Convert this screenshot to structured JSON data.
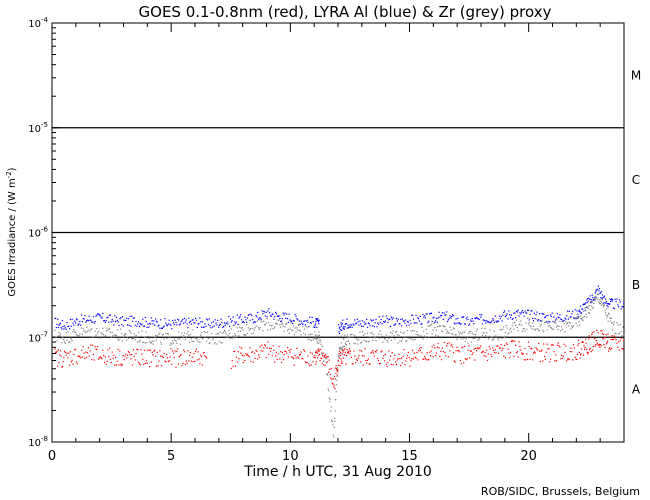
{
  "chart_data": {
    "type": "scatter",
    "title": "GOES 0.1-0.8nm (red), LYRA Al (blue) & Zr (grey) proxy",
    "xlabel": "Time / h UTC, 31 Aug 2010",
    "ylabel_main": "GOES Irradiance / (W m",
    "ylabel_exp": "-2",
    "ylabel_close": ")",
    "credit": "ROB/SIDC, Brussels, Belgium",
    "xlim": [
      0,
      24
    ],
    "ylim": [
      1e-08,
      0.0001
    ],
    "yscale": "log",
    "x_ticks": [
      0,
      5,
      10,
      15,
      20
    ],
    "y_ticks": [
      {
        "exp": -8,
        "label_base": "10",
        "label_exp": "-8"
      },
      {
        "exp": -7,
        "label_base": "10",
        "label_exp": "-7"
      },
      {
        "exp": -6,
        "label_base": "10",
        "label_exp": "-6"
      },
      {
        "exp": -5,
        "label_base": "10",
        "label_exp": "-5"
      },
      {
        "exp": -4,
        "label_base": "10",
        "label_exp": "-4"
      }
    ],
    "class_lines": [
      1e-07,
      1e-06,
      1e-05
    ],
    "class_labels": [
      {
        "label": "A",
        "value": 3.16e-08
      },
      {
        "label": "B",
        "value": 3.16e-07
      },
      {
        "label": "C",
        "value": 3.16e-06
      },
      {
        "label": "M",
        "value": 3.16e-05
      }
    ],
    "series": [
      {
        "color": "#0000ff",
        "x": [
          0.1,
          0.5,
          1,
          1.5,
          2,
          2.5,
          3,
          3.5,
          4,
          4.5,
          5,
          5.5,
          6,
          6.5,
          7,
          7.5,
          8,
          8.5,
          9,
          9.5,
          10,
          10.5,
          11,
          11.2,
          11.5,
          11.8,
          12,
          12.2,
          12.5,
          13,
          13.5,
          14,
          14.5,
          15,
          15.5,
          16,
          16.5,
          17,
          17.5,
          18,
          18.5,
          19,
          19.5,
          20,
          20.5,
          21,
          21.5,
          22,
          22.3,
          22.6,
          22.9,
          23.2,
          23.5,
          24
        ],
        "y": [
          1.4e-07,
          1.3e-07,
          1.45e-07,
          1.5e-07,
          1.55e-07,
          1.48e-07,
          1.42e-07,
          1.45e-07,
          1.4e-07,
          1.38e-07,
          1.35e-07,
          1.38e-07,
          1.42e-07,
          1.35e-07,
          1.38e-07,
          1.45e-07,
          1.5e-07,
          1.55e-07,
          1.75e-07,
          1.6e-07,
          1.55e-07,
          1.45e-07,
          1.4e-07,
          1.35e-07,
          null,
          null,
          1.2e-07,
          1.35e-07,
          1.4e-07,
          1.38e-07,
          1.42e-07,
          1.45e-07,
          1.4e-07,
          1.48e-07,
          1.5e-07,
          1.55e-07,
          1.6e-07,
          1.45e-07,
          1.42e-07,
          1.5e-07,
          1.55e-07,
          1.65e-07,
          1.7e-07,
          1.65e-07,
          1.6e-07,
          1.55e-07,
          1.6e-07,
          1.7e-07,
          2e-07,
          2.3e-07,
          2.9e-07,
          2.2e-07,
          2.1e-07,
          2.1e-07
        ]
      },
      {
        "color": "#808080",
        "x": [
          0.1,
          0.5,
          1,
          1.5,
          2,
          2.5,
          3,
          3.5,
          4,
          4.5,
          5,
          5.5,
          6,
          6.5,
          7,
          7.5,
          8,
          8.5,
          9,
          9.5,
          10,
          10.5,
          11,
          11.2,
          11.5,
          11.8,
          12,
          12.2,
          12.5,
          13,
          13.5,
          14,
          14.5,
          15,
          15.5,
          16,
          16.5,
          17,
          17.5,
          18,
          18.5,
          19,
          19.5,
          20,
          20.5,
          21,
          21.5,
          22,
          22.3,
          22.6,
          22.9,
          23.2,
          23.5,
          24
        ],
        "y": [
          1.05e-07,
          1e-07,
          1.1e-07,
          1.15e-07,
          1.12e-07,
          1.08e-07,
          1.05e-07,
          1.03e-07,
          1e-07,
          9.8e-08,
          9.7e-08,
          1e-07,
          1.05e-07,
          1e-07,
          1e-07,
          1.1e-07,
          1.2e-07,
          1.25e-07,
          1.35e-07,
          1.3e-07,
          1.25e-07,
          1.15e-07,
          1.05e-07,
          1e-07,
          5e-08,
          1.2e-08,
          7e-08,
          9e-08,
          1e-07,
          1e-07,
          1.02e-07,
          1.05e-07,
          1e-07,
          1.05e-07,
          1.1e-07,
          1.2e-07,
          1.15e-07,
          1.05e-07,
          1e-07,
          1.1e-07,
          1.05e-07,
          1.15e-07,
          1.3e-07,
          1.35e-07,
          1.3e-07,
          1.25e-07,
          1.3e-07,
          1.4e-07,
          1.7e-07,
          2e-07,
          2.5e-07,
          1.8e-07,
          1.3e-07,
          1.1e-07
        ]
      },
      {
        "color": "#ff0000",
        "x": [
          0.1,
          0.5,
          1,
          1.5,
          2,
          2.5,
          3,
          3.5,
          4,
          4.5,
          5,
          5.5,
          6,
          6.5,
          7,
          7.5,
          8,
          8.5,
          9,
          9.5,
          10,
          10.5,
          11,
          11.2,
          11.5,
          11.8,
          12,
          12.2,
          12.5,
          13,
          13.5,
          14,
          14.5,
          15,
          15.5,
          16,
          16.5,
          17,
          17.5,
          18,
          18.5,
          19,
          19.5,
          20,
          20.5,
          21,
          21.5,
          22,
          22.3,
          22.6,
          22.9,
          23.2,
          23.5,
          24
        ],
        "y": [
          6.5e-08,
          6.4e-08,
          6.8e-08,
          7e-08,
          6.8e-08,
          6.6e-08,
          6.5e-08,
          6.4e-08,
          6.5e-08,
          6.3e-08,
          6.4e-08,
          6.5e-08,
          6.6e-08,
          6.5e-08,
          null,
          6.2e-08,
          6.8e-08,
          6.9e-08,
          7.5e-08,
          7e-08,
          6.8e-08,
          6.6e-08,
          6.6e-08,
          6.5e-08,
          6.4e-08,
          3.5e-08,
          6.3e-08,
          6.4e-08,
          6.5e-08,
          6.4e-08,
          6.6e-08,
          6.5e-08,
          6.5e-08,
          6.6e-08,
          6.8e-08,
          7.2e-08,
          7.5e-08,
          7e-08,
          6.8e-08,
          7e-08,
          7.2e-08,
          7.5e-08,
          7.8e-08,
          7.4e-08,
          7.2e-08,
          7.2e-08,
          7.4e-08,
          7.6e-08,
          8.2e-08,
          9e-08,
          1e-07,
          9.5e-08,
          8.5e-08,
          8.8e-08
        ]
      }
    ]
  }
}
